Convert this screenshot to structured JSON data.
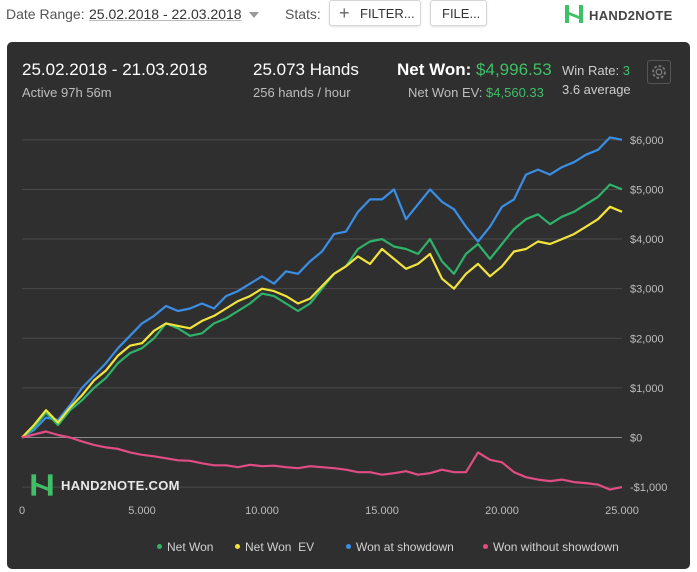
{
  "toolbar": {
    "date_range_label": "Date Range:",
    "date_range_value": "25.02.2018 - 22.03.2018",
    "stats_label": "Stats:",
    "filter_button": "FILTER...",
    "file_button": "FILE...",
    "logo_text": "HAND2NOTE",
    "icons": {
      "dropdown": "chevron-down-icon",
      "plus": "plus-icon",
      "logo": "hand2note-logo-icon"
    }
  },
  "summary": {
    "period": "25.02.2018 - 21.03.2018",
    "active": "Active 97h 56m",
    "hands": "25.073 Hands",
    "hands_rate": "256 hands / hour",
    "net_won_label": "Net Won:",
    "net_won_value": "$4,996.53",
    "net_won_ev_label": "Net Won  EV:",
    "net_won_ev_value": "$4,560.33",
    "win_rate_label": "Win Rate:",
    "win_rate_value": "3",
    "win_rate_sub": "3.6 average",
    "settings_icon": "gear-icon",
    "accent_green": "#3fbf66"
  },
  "watermark": "HAND2NOTE.COM",
  "chart_data": {
    "type": "line",
    "xlim": [
      0,
      25000
    ],
    "ylim": [
      -1200,
      6400
    ],
    "x_ticks": [
      0,
      5000,
      10000,
      15000,
      20000,
      25000
    ],
    "x_tick_labels": [
      "0",
      "5.000",
      "10.000",
      "15.000",
      "20.000",
      "25.000"
    ],
    "y_ticks": [
      -1000,
      0,
      1000,
      2000,
      3000,
      4000,
      5000,
      6000
    ],
    "y_tick_labels": [
      "-$1,000",
      "$0",
      "$1,000",
      "$2,000",
      "$3,000",
      "$4,000",
      "$5,000",
      "$6,000"
    ],
    "grid": true,
    "legend_position": "bottom",
    "series": [
      {
        "name": "Won at showdown",
        "color": "#3a8ee6",
        "x": [
          0,
          500,
          1000,
          1500,
          2000,
          2500,
          3000,
          3500,
          4000,
          4500,
          5000,
          5500,
          6000,
          6500,
          7000,
          7500,
          8000,
          8500,
          9000,
          9500,
          10000,
          10500,
          11000,
          11500,
          12000,
          12500,
          13000,
          13500,
          14000,
          14500,
          15000,
          15500,
          16000,
          16500,
          17000,
          17500,
          18000,
          18500,
          19000,
          19500,
          20000,
          20500,
          21000,
          21500,
          22000,
          22500,
          23000,
          23500,
          24000,
          24500,
          25000
        ],
        "values": [
          0,
          150,
          400,
          350,
          650,
          1000,
          1250,
          1500,
          1800,
          2050,
          2300,
          2450,
          2650,
          2550,
          2600,
          2700,
          2600,
          2850,
          2950,
          3100,
          3250,
          3100,
          3350,
          3300,
          3550,
          3750,
          4100,
          4150,
          4550,
          4800,
          4800,
          5000,
          4400,
          4700,
          5000,
          4750,
          4600,
          4250,
          3950,
          4250,
          4650,
          4800,
          5300,
          5400,
          5300,
          5450,
          5550,
          5700,
          5800,
          6050,
          6000
        ]
      },
      {
        "name": "Net Won",
        "color": "#2fb36a",
        "x": [
          0,
          500,
          1000,
          1500,
          2000,
          2500,
          3000,
          3500,
          4000,
          4500,
          5000,
          5500,
          6000,
          6500,
          7000,
          7500,
          8000,
          8500,
          9000,
          9500,
          10000,
          10500,
          11000,
          11500,
          12000,
          12500,
          13000,
          13500,
          14000,
          14500,
          15000,
          15500,
          16000,
          16500,
          17000,
          17500,
          18000,
          18500,
          19000,
          19500,
          20000,
          20500,
          21000,
          21500,
          22000,
          22500,
          23000,
          23500,
          24000,
          24500,
          25000
        ],
        "values": [
          0,
          200,
          500,
          250,
          550,
          750,
          1000,
          1200,
          1500,
          1700,
          1800,
          2000,
          2300,
          2200,
          2050,
          2100,
          2300,
          2400,
          2550,
          2700,
          2900,
          2850,
          2700,
          2550,
          2700,
          3000,
          3300,
          3450,
          3800,
          3950,
          4000,
          3850,
          3800,
          3700,
          4000,
          3550,
          3300,
          3700,
          3900,
          3600,
          3900,
          4200,
          4400,
          4500,
          4300,
          4450,
          4550,
          4700,
          4850,
          5100,
          5000
        ]
      },
      {
        "name": "Net Won  EV",
        "color": "#f2e43c",
        "x": [
          0,
          500,
          1000,
          1500,
          2000,
          2500,
          3000,
          3500,
          4000,
          4500,
          5000,
          5500,
          6000,
          6500,
          7000,
          7500,
          8000,
          8500,
          9000,
          9500,
          10000,
          10500,
          11000,
          11500,
          12000,
          12500,
          13000,
          13500,
          14000,
          14500,
          15000,
          15500,
          16000,
          16500,
          17000,
          17500,
          18000,
          18500,
          19000,
          19500,
          20000,
          20500,
          21000,
          21500,
          22000,
          22500,
          23000,
          23500,
          24000,
          24500,
          25000
        ],
        "values": [
          0,
          250,
          550,
          300,
          600,
          850,
          1150,
          1350,
          1650,
          1850,
          1900,
          2150,
          2300,
          2250,
          2200,
          2350,
          2450,
          2600,
          2750,
          2850,
          3000,
          2950,
          2850,
          2700,
          2800,
          3050,
          3300,
          3450,
          3650,
          3500,
          3800,
          3600,
          3400,
          3500,
          3700,
          3200,
          3000,
          3300,
          3500,
          3250,
          3450,
          3750,
          3800,
          3950,
          3900,
          4000,
          4100,
          4250,
          4400,
          4650,
          4550
        ]
      },
      {
        "name": "Won without showdown",
        "color": "#e04d83",
        "x": [
          0,
          500,
          1000,
          1500,
          2000,
          2500,
          3000,
          3500,
          4000,
          4500,
          5000,
          5500,
          6000,
          6500,
          7000,
          7500,
          8000,
          8500,
          9000,
          9500,
          10000,
          10500,
          11000,
          11500,
          12000,
          12500,
          13000,
          13500,
          14000,
          14500,
          15000,
          15500,
          16000,
          16500,
          17000,
          17500,
          18000,
          18500,
          19000,
          19500,
          20000,
          20500,
          21000,
          21500,
          22000,
          22500,
          23000,
          23500,
          24000,
          24500,
          25000
        ],
        "values": [
          0,
          60,
          120,
          50,
          0,
          -80,
          -150,
          -200,
          -230,
          -300,
          -350,
          -380,
          -420,
          -460,
          -470,
          -520,
          -560,
          -560,
          -600,
          -550,
          -580,
          -570,
          -600,
          -620,
          -580,
          -600,
          -620,
          -650,
          -700,
          -700,
          -750,
          -720,
          -680,
          -750,
          -720,
          -650,
          -700,
          -700,
          -300,
          -450,
          -500,
          -700,
          -800,
          -850,
          -880,
          -850,
          -900,
          -920,
          -950,
          -1050,
          -1000
        ]
      }
    ]
  }
}
